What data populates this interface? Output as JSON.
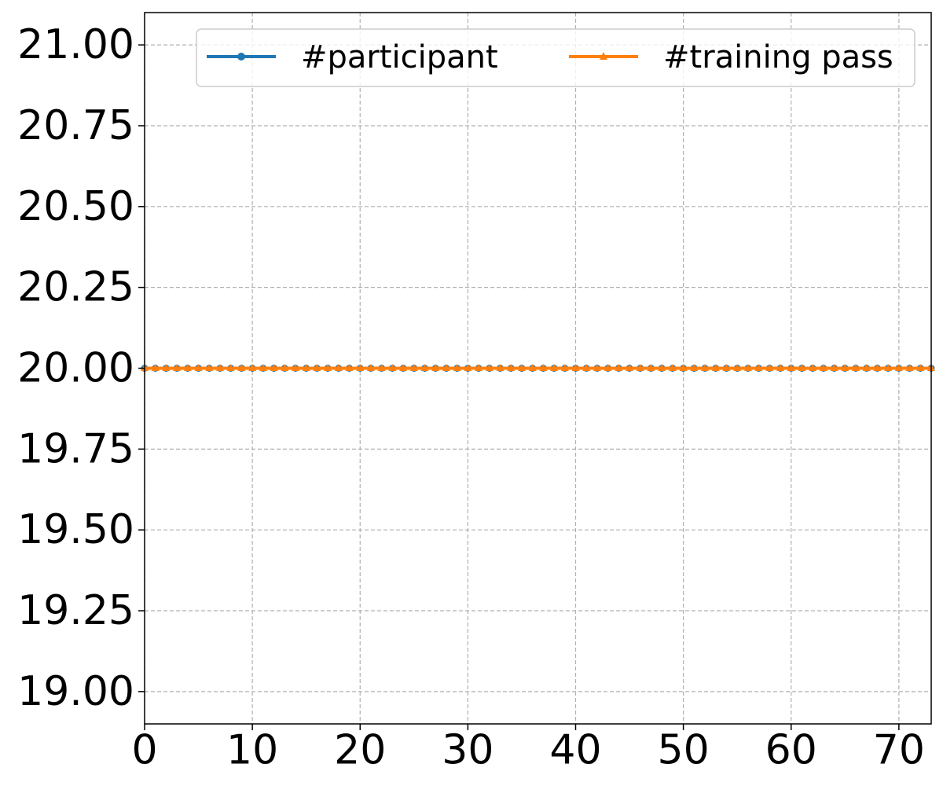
{
  "chart_data": {
    "type": "line",
    "title": "",
    "xlabel": "",
    "ylabel": "",
    "xlim": [
      0,
      73
    ],
    "ylim": [
      18.9,
      21.1
    ],
    "x_ticks": [
      0,
      10,
      20,
      30,
      40,
      50,
      60,
      70
    ],
    "x_tick_labels": [
      "0",
      "10",
      "20",
      "30",
      "40",
      "50",
      "60",
      "70"
    ],
    "y_ticks": [
      19.0,
      19.25,
      19.5,
      19.75,
      20.0,
      20.25,
      20.5,
      20.75,
      21.0
    ],
    "y_tick_labels": [
      "19.00",
      "19.25",
      "19.50",
      "19.75",
      "20.00",
      "20.25",
      "20.50",
      "20.75",
      "21.00"
    ],
    "grid": true,
    "legend_position": "top-right",
    "legend_columns": 2,
    "x": [
      0,
      1,
      2,
      3,
      4,
      5,
      6,
      7,
      8,
      9,
      10,
      11,
      12,
      13,
      14,
      15,
      16,
      17,
      18,
      19,
      20,
      21,
      22,
      23,
      24,
      25,
      26,
      27,
      28,
      29,
      30,
      31,
      32,
      33,
      34,
      35,
      36,
      37,
      38,
      39,
      40,
      41,
      42,
      43,
      44,
      45,
      46,
      47,
      48,
      49,
      50,
      51,
      52,
      53,
      54,
      55,
      56,
      57,
      58,
      59,
      60,
      61,
      62,
      63,
      64,
      65,
      66,
      67,
      68,
      69,
      70,
      71,
      72,
      73
    ],
    "series": [
      {
        "name": "#participant",
        "color": "#1f77b4",
        "marker": "circle",
        "values": [
          20,
          20,
          20,
          20,
          20,
          20,
          20,
          20,
          20,
          20,
          20,
          20,
          20,
          20,
          20,
          20,
          20,
          20,
          20,
          20,
          20,
          20,
          20,
          20,
          20,
          20,
          20,
          20,
          20,
          20,
          20,
          20,
          20,
          20,
          20,
          20,
          20,
          20,
          20,
          20,
          20,
          20,
          20,
          20,
          20,
          20,
          20,
          20,
          20,
          20,
          20,
          20,
          20,
          20,
          20,
          20,
          20,
          20,
          20,
          20,
          20,
          20,
          20,
          20,
          20,
          20,
          20,
          20,
          20,
          20,
          20,
          20,
          20,
          20
        ]
      },
      {
        "name": "#training pass",
        "color": "#ff7f0e",
        "marker": "triangle",
        "values": [
          20,
          20,
          20,
          20,
          20,
          20,
          20,
          20,
          20,
          20,
          20,
          20,
          20,
          20,
          20,
          20,
          20,
          20,
          20,
          20,
          20,
          20,
          20,
          20,
          20,
          20,
          20,
          20,
          20,
          20,
          20,
          20,
          20,
          20,
          20,
          20,
          20,
          20,
          20,
          20,
          20,
          20,
          20,
          20,
          20,
          20,
          20,
          20,
          20,
          20,
          20,
          20,
          20,
          20,
          20,
          20,
          20,
          20,
          20,
          20,
          20,
          20,
          20,
          20,
          20,
          20,
          20,
          20,
          20,
          20,
          20,
          20,
          20,
          20
        ]
      }
    ]
  }
}
